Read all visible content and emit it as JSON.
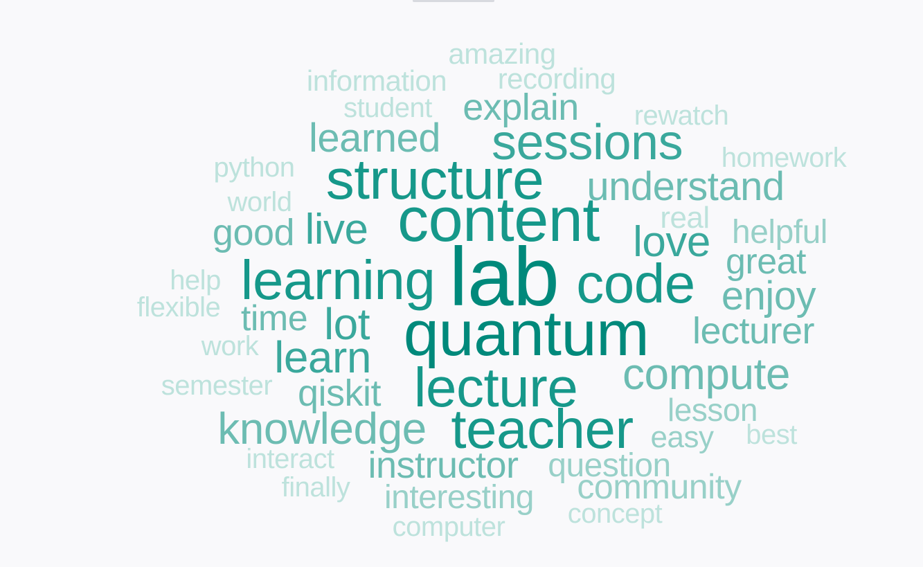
{
  "colors": {
    "background": "#f9f9fb",
    "tiers": [
      "#00897b",
      "#16988a",
      "#3aa89c",
      "#6cbcb2",
      "#98d0c8",
      "#bde2dc"
    ]
  },
  "words": [
    {
      "text": "lab",
      "tier": 0
    },
    {
      "text": "quantum",
      "tier": 0
    },
    {
      "text": "content",
      "tier": 1
    },
    {
      "text": "structure",
      "tier": 1
    },
    {
      "text": "code",
      "tier": 1
    },
    {
      "text": "learning",
      "tier": 1
    },
    {
      "text": "lecture",
      "tier": 1
    },
    {
      "text": "teacher",
      "tier": 1
    },
    {
      "text": "sessions",
      "tier": 2
    },
    {
      "text": "compute",
      "tier": 3
    },
    {
      "text": "knowledge",
      "tier": 3
    },
    {
      "text": "learn",
      "tier": 2
    },
    {
      "text": "lot",
      "tier": 2
    },
    {
      "text": "live",
      "tier": 2
    },
    {
      "text": "love",
      "tier": 2
    },
    {
      "text": "understand",
      "tier": 3
    },
    {
      "text": "learned",
      "tier": 3
    },
    {
      "text": "enjoy",
      "tier": 3
    },
    {
      "text": "lecturer",
      "tier": 3
    },
    {
      "text": "great",
      "tier": 3
    },
    {
      "text": "instructor",
      "tier": 3
    },
    {
      "text": "explain",
      "tier": 3
    },
    {
      "text": "good",
      "tier": 3
    },
    {
      "text": "time",
      "tier": 3
    },
    {
      "text": "qiskit",
      "tier": 3
    },
    {
      "text": "community",
      "tier": 4
    },
    {
      "text": "interesting",
      "tier": 4
    },
    {
      "text": "question",
      "tier": 4
    },
    {
      "text": "helpful",
      "tier": 4
    },
    {
      "text": "lesson",
      "tier": 4
    },
    {
      "text": "easy",
      "tier": 4
    },
    {
      "text": "real",
      "tier": 5
    },
    {
      "text": "information",
      "tier": 5
    },
    {
      "text": "recording",
      "tier": 5
    },
    {
      "text": "amazing",
      "tier": 5
    },
    {
      "text": "student",
      "tier": 5
    },
    {
      "text": "rewatch",
      "tier": 5
    },
    {
      "text": "homework",
      "tier": 5
    },
    {
      "text": "python",
      "tier": 5
    },
    {
      "text": "world",
      "tier": 5
    },
    {
      "text": "help",
      "tier": 5
    },
    {
      "text": "flexible",
      "tier": 5
    },
    {
      "text": "work",
      "tier": 5
    },
    {
      "text": "semester",
      "tier": 5
    },
    {
      "text": "interact",
      "tier": 5
    },
    {
      "text": "finally",
      "tier": 5
    },
    {
      "text": "concept",
      "tier": 5
    },
    {
      "text": "computer",
      "tier": 5
    },
    {
      "text": "best",
      "tier": 5
    }
  ]
}
